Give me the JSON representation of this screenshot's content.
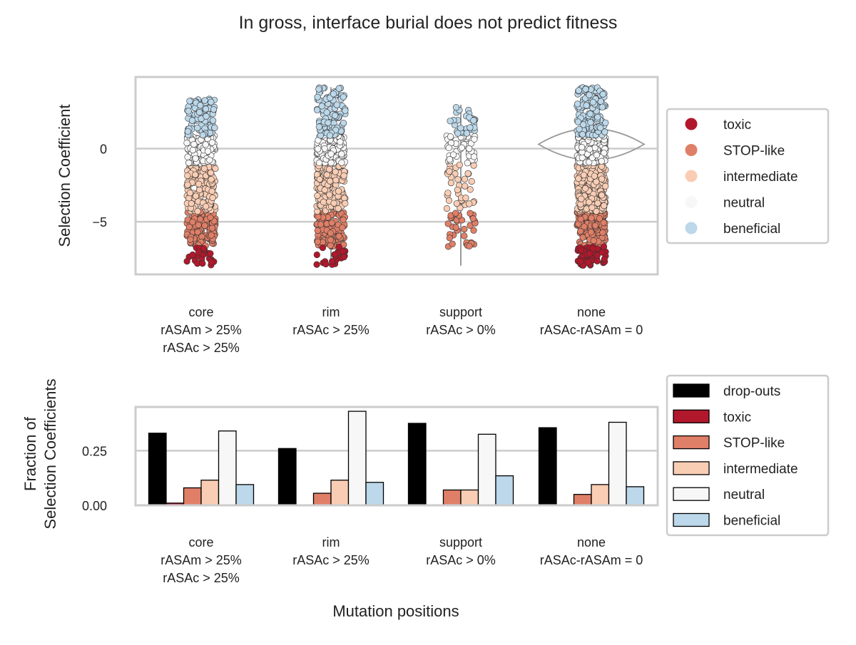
{
  "figure": {
    "title": "In gross, interface burial does not predict fitness",
    "xlabel": "Mutation positions"
  },
  "categories": [
    [
      "core",
      "rASAm > 25%",
      "rASAc > 25%"
    ],
    [
      "rim",
      "rASAc > 25%"
    ],
    [
      "support",
      "rASAc > 0%"
    ],
    [
      "none",
      "rASAc-rASAm = 0"
    ]
  ],
  "colors": {
    "drop-outs": "#000000",
    "toxic": "#b2182b",
    "STOP-like": "#e07f67",
    "intermediate": "#f9cdb4",
    "neutral": "#f7f7f7",
    "beneficial": "#bcd8ea",
    "frame": "#cccccc",
    "grid": "#cccccc",
    "violin": "#999999"
  },
  "chart_data": [
    {
      "type": "scatter",
      "subtype": "strip",
      "ylabel": "Selection Coefficient",
      "yticks": [
        0,
        -5
      ],
      "ylim": [
        -8.6,
        4.9
      ],
      "grid": true,
      "legend": {
        "placement": "right",
        "entries": [
          "toxic",
          "STOP-like",
          "intermediate",
          "neutral",
          "beneficial"
        ]
      },
      "class_ranges": {
        "toxic": [
          -8,
          -6.7
        ],
        "STOP-like": [
          -6.7,
          -4.3
        ],
        "intermediate": [
          -4.3,
          -1.0
        ],
        "neutral": [
          -1.0,
          0.9
        ],
        "beneficial": [
          0.9,
          4.2
        ]
      },
      "groups": [
        {
          "category": "core",
          "max": 3.4,
          "counts": {
            "toxic": 28,
            "STOP-like": 130,
            "intermediate": 150,
            "neutral": 120,
            "beneficial": 90
          }
        },
        {
          "category": "rim",
          "max": 4.2,
          "counts": {
            "toxic": 24,
            "STOP-like": 130,
            "intermediate": 170,
            "neutral": 120,
            "beneficial": 110
          }
        },
        {
          "category": "support",
          "max": 3.0,
          "counts": {
            "toxic": 0,
            "STOP-like": 35,
            "intermediate": 35,
            "neutral": 40,
            "beneficial": 30
          }
        },
        {
          "category": "none",
          "max": 4.2,
          "counts": {
            "toxic": 60,
            "STOP-like": 200,
            "intermediate": 260,
            "neutral": 200,
            "beneficial": 160
          }
        }
      ]
    },
    {
      "type": "bar",
      "ylabel": "Fraction of\nSelection Coefficients",
      "yticks": [
        0.0,
        0.25
      ],
      "ytick_labels": [
        "0.00",
        "0.25"
      ],
      "ylim": [
        0,
        0.45
      ],
      "grid": true,
      "legend": {
        "placement": "right",
        "entries": [
          "drop-outs",
          "toxic",
          "STOP-like",
          "intermediate",
          "neutral",
          "beneficial"
        ]
      },
      "series": [
        {
          "name": "drop-outs",
          "values": [
            0.33,
            0.26,
            0.375,
            0.355
          ]
        },
        {
          "name": "toxic",
          "values": [
            0.01,
            0.0,
            0.0,
            0.0
          ]
        },
        {
          "name": "STOP-like",
          "values": [
            0.08,
            0.055,
            0.07,
            0.05
          ]
        },
        {
          "name": "intermediate",
          "values": [
            0.115,
            0.115,
            0.07,
            0.095
          ]
        },
        {
          "name": "neutral",
          "values": [
            0.34,
            0.43,
            0.325,
            0.38
          ]
        },
        {
          "name": "beneficial",
          "values": [
            0.095,
            0.105,
            0.135,
            0.085
          ]
        }
      ]
    }
  ]
}
